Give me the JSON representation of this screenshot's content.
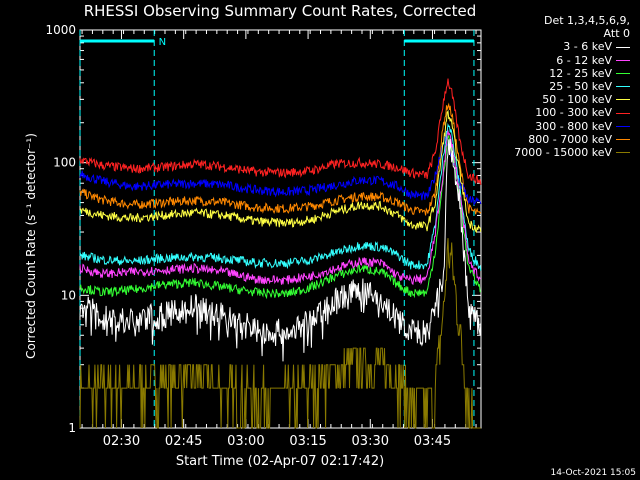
{
  "chart_data": {
    "type": "line",
    "title": "RHESSI Observing Summary Count Rates, Corrected",
    "xlabel": "Start Time (02-Apr-07 02:17:42)",
    "ylabel": "Corrected Count Rate (s⁻¹ detector⁻¹)",
    "yscale": "log",
    "ylim": [
      1,
      1000
    ],
    "xlim_minutes": [
      2.3,
      99.0
    ],
    "x_tick_minutes": [
      12.3,
      27.3,
      42.3,
      57.3,
      72.3,
      87.3
    ],
    "x_tick_labels": [
      "02:30",
      "02:45",
      "03:00",
      "03:15",
      "03:30",
      "03:45"
    ],
    "y_ticks": [
      1,
      10,
      100,
      1000
    ],
    "y_tick_labels": [
      "1",
      "10",
      "100",
      "1000"
    ],
    "legend_header": [
      "Det 1,3,4,5,6,9,",
      "Att 0"
    ],
    "annotations": [
      {
        "text": "N",
        "x_minutes": 20.3,
        "y": 800
      }
    ],
    "night_markers": [
      {
        "start_minutes": 2.3,
        "end_minutes": 20.2
      },
      {
        "start_minutes": 80.5,
        "end_minutes": 97.3
      }
    ],
    "knots_minutes": [
      2.3,
      8,
      15,
      22,
      30,
      37,
      45,
      52,
      58,
      64,
      70,
      75,
      79,
      82,
      86,
      88,
      90,
      91,
      92,
      94,
      96,
      99
    ],
    "series": [
      {
        "name": "3 - 6 keV",
        "color": "#ffffff",
        "values": [
          8.5,
          6.8,
          6.5,
          7.0,
          8.2,
          7.0,
          5.6,
          5.2,
          6.3,
          9.5,
          11.0,
          9.0,
          6.5,
          5.4,
          5.1,
          8,
          14,
          135,
          120,
          45,
          8,
          5.5
        ]
      },
      {
        "name": "6 - 12 keV",
        "color": "#ff44ff",
        "values": [
          16,
          14.5,
          15,
          15.5,
          16,
          15,
          13.2,
          13.0,
          14,
          16,
          18,
          17.5,
          14,
          13,
          13.5,
          30,
          90,
          170,
          140,
          55,
          18,
          13
        ]
      },
      {
        "name": "12 - 25 keV",
        "color": "#33ff33",
        "values": [
          11.5,
          10.5,
          11,
          12,
          12.5,
          11.5,
          10.5,
          10.2,
          11.5,
          14,
          16,
          15,
          12,
          10.5,
          10.5,
          22,
          80,
          160,
          130,
          50,
          16,
          11
        ]
      },
      {
        "name": "25 - 50 keV",
        "color": "#33ffff",
        "values": [
          20,
          18.5,
          18,
          19,
          19.5,
          19,
          17.5,
          17.5,
          18.5,
          21,
          24,
          23,
          20,
          17,
          17,
          35,
          120,
          200,
          160,
          60,
          22,
          16
        ]
      },
      {
        "name": "50 - 100 keV",
        "color": "#ffff44",
        "values": [
          44,
          40,
          38,
          40,
          42,
          40,
          36,
          35,
          37,
          43,
          48,
          47,
          40,
          34,
          33,
          50,
          150,
          240,
          190,
          80,
          35,
          31
        ]
      },
      {
        "name": "100 - 300 keV",
        "color": "#ff2222",
        "values": [
          105,
          95,
          90,
          92,
          98,
          93,
          85,
          84,
          87,
          98,
          100,
          97,
          92,
          84,
          80,
          120,
          300,
          420,
          330,
          140,
          80,
          72
        ]
      },
      {
        "name": "300 - 800 keV",
        "color": "#0000ff",
        "values": [
          82,
          72,
          66,
          68,
          70,
          68,
          62,
          60,
          62,
          68,
          74,
          73,
          66,
          58,
          55,
          80,
          150,
          140,
          110,
          70,
          52,
          50
        ]
      },
      {
        "name": "800 - 7000 keV",
        "color": "#ff8800",
        "values": [
          60,
          52,
          48,
          50,
          52,
          50,
          46,
          45,
          47,
          52,
          56,
          55,
          50,
          44,
          42,
          60,
          200,
          280,
          230,
          90,
          45,
          40
        ]
      },
      {
        "name": "7000 - 15000 keV",
        "color": "#8a7a00",
        "values": [
          2.0,
          2.0,
          2.0,
          2.2,
          2.5,
          2.0,
          1.8,
          1.8,
          2.0,
          2.6,
          3.3,
          3.0,
          2.4,
          1.6,
          1.5,
          2.0,
          8,
          22,
          18,
          5,
          1.5,
          1.0
        ]
      }
    ]
  },
  "timestamp": "14-Oct-2021 15:05"
}
